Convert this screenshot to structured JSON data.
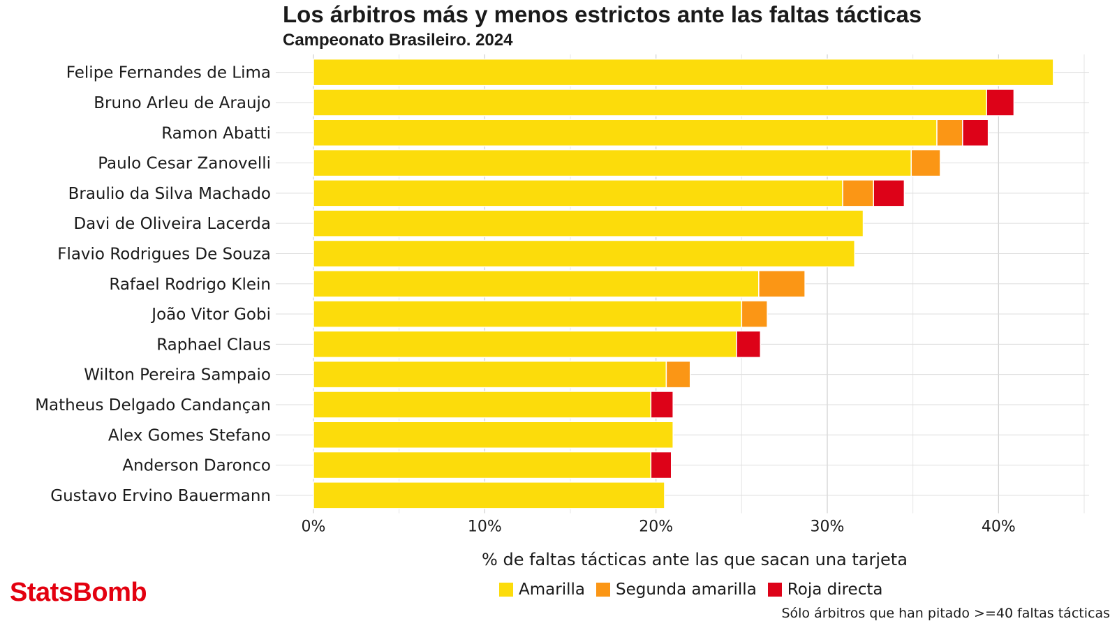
{
  "chart_data": {
    "type": "bar",
    "orientation": "horizontal",
    "stacked": true,
    "title": "Los árbitros más y menos estrictos ante las faltas tácticas",
    "subtitle": "Campeonato Brasileiro. 2024",
    "xlabel": "% de faltas tácticas ante las que sacan una tarjeta",
    "xlim": [
      0,
      45
    ],
    "xticks": [
      0,
      10,
      20,
      30,
      40
    ],
    "xtick_labels": [
      "0%",
      "10%",
      "20%",
      "30%",
      "40%"
    ],
    "grid": true,
    "legend_position": "bottom",
    "categories": [
      "Felipe Fernandes de Lima",
      "Bruno Arleu de Araujo",
      "Ramon Abatti",
      "Paulo Cesar Zanovelli",
      "Braulio da Silva Machado",
      "Davi de Oliveira Lacerda",
      "Flavio Rodrigues De Souza",
      "Rafael Rodrigo Klein",
      "João Vitor Gobi",
      "Raphael Claus",
      "Wilton Pereira Sampaio",
      "Matheus Delgado Candançan",
      "Alex Gomes Stefano",
      "Anderson Daronco",
      "Gustavo Ervino Bauermann"
    ],
    "series": [
      {
        "name": "Amarilla",
        "color": "#fcdc0b",
        "values": [
          43.2,
          39.3,
          36.4,
          34.9,
          30.9,
          32.1,
          31.6,
          26.0,
          25.0,
          24.7,
          20.6,
          19.7,
          21.0,
          19.7,
          20.5
        ]
      },
      {
        "name": "Segunda amarilla",
        "color": "#fb9615",
        "values": [
          0,
          0,
          1.5,
          1.7,
          1.8,
          0,
          0,
          2.7,
          1.5,
          0,
          1.4,
          0,
          0,
          0,
          0
        ]
      },
      {
        "name": "Roja directa",
        "color": "#dd0218",
        "values": [
          0,
          1.6,
          1.5,
          0,
          1.8,
          0,
          0,
          0,
          0,
          1.4,
          0,
          1.3,
          0,
          1.2,
          0
        ]
      }
    ]
  },
  "brand": "StatsBomb",
  "note": "Sólo árbitros que han pitado >=40 faltas tácticas"
}
